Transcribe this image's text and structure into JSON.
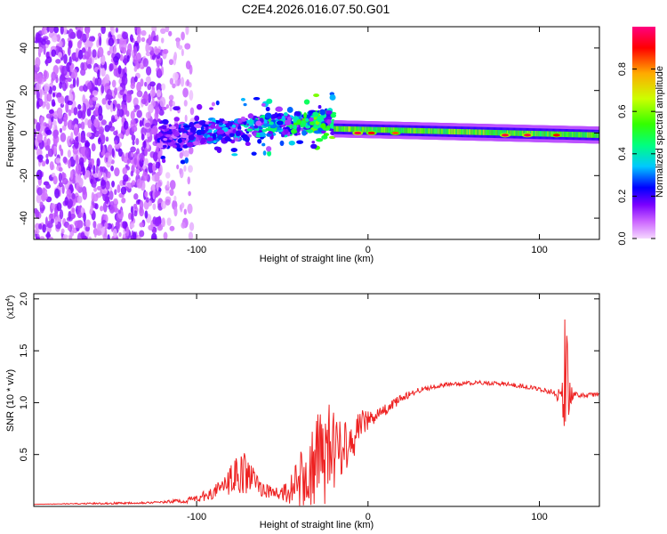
{
  "title": "C2E4.2026.016.07.50.G01",
  "chart_data": [
    {
      "type": "heatmap",
      "name": "spectrogram",
      "xlabel": "Height of straight line (km)",
      "ylabel": "Frequency (Hz)",
      "xlim": [
        -195,
        135
      ],
      "ylim": [
        -50,
        50
      ],
      "x_ticks": [
        -100,
        0,
        100
      ],
      "x_tick_labels": [
        "-100",
        "0",
        "100"
      ],
      "y_ticks": [
        -40,
        -20,
        0,
        20,
        40
      ],
      "y_tick_labels": [
        "-40",
        "-20",
        "0",
        "20",
        "40"
      ],
      "colorbar": {
        "label": "Normalized spectral amplitude",
        "range": [
          0,
          1
        ],
        "ticks": [
          0.0,
          0.2,
          0.4,
          0.6,
          0.8
        ],
        "tick_labels": [
          "0.0",
          "0.2",
          "0.4",
          "0.6",
          "0.8"
        ],
        "colors": [
          "#f5d8ff",
          "#cc66ff",
          "#7a00ff",
          "#0000ff",
          "#00c8ff",
          "#00ff80",
          "#33ff00",
          "#ccff00",
          "#ffaa00",
          "#ff0000",
          "#ff0080"
        ]
      },
      "features": [
        {
          "region": "noise",
          "x_range": [
            -195,
            -120
          ],
          "freq_range": [
            -50,
            50
          ],
          "amplitude": 0.15
        },
        {
          "region": "sparse noise",
          "x_range": [
            -120,
            -102
          ],
          "freq_range": [
            -50,
            50
          ],
          "amplitude": 0.08
        },
        {
          "region": "turbulent band",
          "x_range": [
            -122,
            -20
          ],
          "center_hz": [
            -2,
            6
          ],
          "amplitude": 0.35
        },
        {
          "region": "stable tone",
          "x_range": [
            -20,
            135
          ],
          "center_hz": [
            2,
            -1
          ],
          "amplitude": 0.6
        },
        {
          "region": "peak",
          "x": -6,
          "freq": 0,
          "amplitude": 0.95
        },
        {
          "region": "peak",
          "x": 2,
          "freq": 0,
          "amplitude": 0.9
        },
        {
          "region": "peak",
          "x": 16,
          "freq": 0,
          "amplitude": 0.85
        },
        {
          "region": "peak",
          "x": 80,
          "freq": -1,
          "amplitude": 0.95
        },
        {
          "region": "peak",
          "x": 93,
          "freq": -1,
          "amplitude": 0.95
        },
        {
          "region": "peak",
          "x": 110,
          "freq": -1,
          "amplitude": 0.9
        }
      ]
    },
    {
      "type": "line",
      "name": "snr",
      "xlabel": "Height of straight line (km)",
      "ylabel": "SNR (10 * v/v)",
      "y_multiplier": "(x10",
      "y_multiplier_exp": "4",
      "y_multiplier_close": ")",
      "xlim": [
        -195,
        135
      ],
      "ylim": [
        0,
        2.05
      ],
      "x_ticks": [
        -100,
        0,
        100
      ],
      "x_tick_labels": [
        "-100",
        "0",
        "100"
      ],
      "y_ticks": [
        0.5,
        1.0,
        1.5,
        2.0
      ],
      "y_tick_labels": [
        "0.5",
        "1.0",
        "1.5",
        "2.0"
      ],
      "series": [
        {
          "name": "SNR",
          "color": "#ee2222",
          "x": [
            -195,
            -150,
            -120,
            -105,
            -95,
            -85,
            -78,
            -72,
            -65,
            -58,
            -50,
            -42,
            -35,
            -28,
            -22,
            -15,
            -8,
            -2,
            5,
            12,
            20,
            30,
            40,
            50,
            60,
            70,
            80,
            90,
            100,
            108,
            113,
            115,
            117,
            120,
            125,
            135
          ],
          "y": [
            0.02,
            0.03,
            0.04,
            0.06,
            0.1,
            0.18,
            0.28,
            0.32,
            0.22,
            0.14,
            0.12,
            0.2,
            0.3,
            0.45,
            0.55,
            0.6,
            0.68,
            0.82,
            0.88,
            0.95,
            1.05,
            1.12,
            1.16,
            1.18,
            1.19,
            1.19,
            1.18,
            1.16,
            1.13,
            1.1,
            1.06,
            1.2,
            1.09,
            1.08,
            1.07,
            1.08
          ],
          "noise": [
            0.0,
            0.01,
            0.01,
            0.03,
            0.05,
            0.08,
            0.18,
            0.2,
            0.12,
            0.06,
            0.1,
            0.22,
            0.4,
            0.5,
            0.45,
            0.3,
            0.2,
            0.12,
            0.06,
            0.05,
            0.04,
            0.03,
            0.02,
            0.02,
            0.02,
            0.02,
            0.02,
            0.02,
            0.02,
            0.03,
            0.1,
            0.8,
            0.3,
            0.03,
            0.02,
            0.02
          ]
        }
      ]
    }
  ]
}
